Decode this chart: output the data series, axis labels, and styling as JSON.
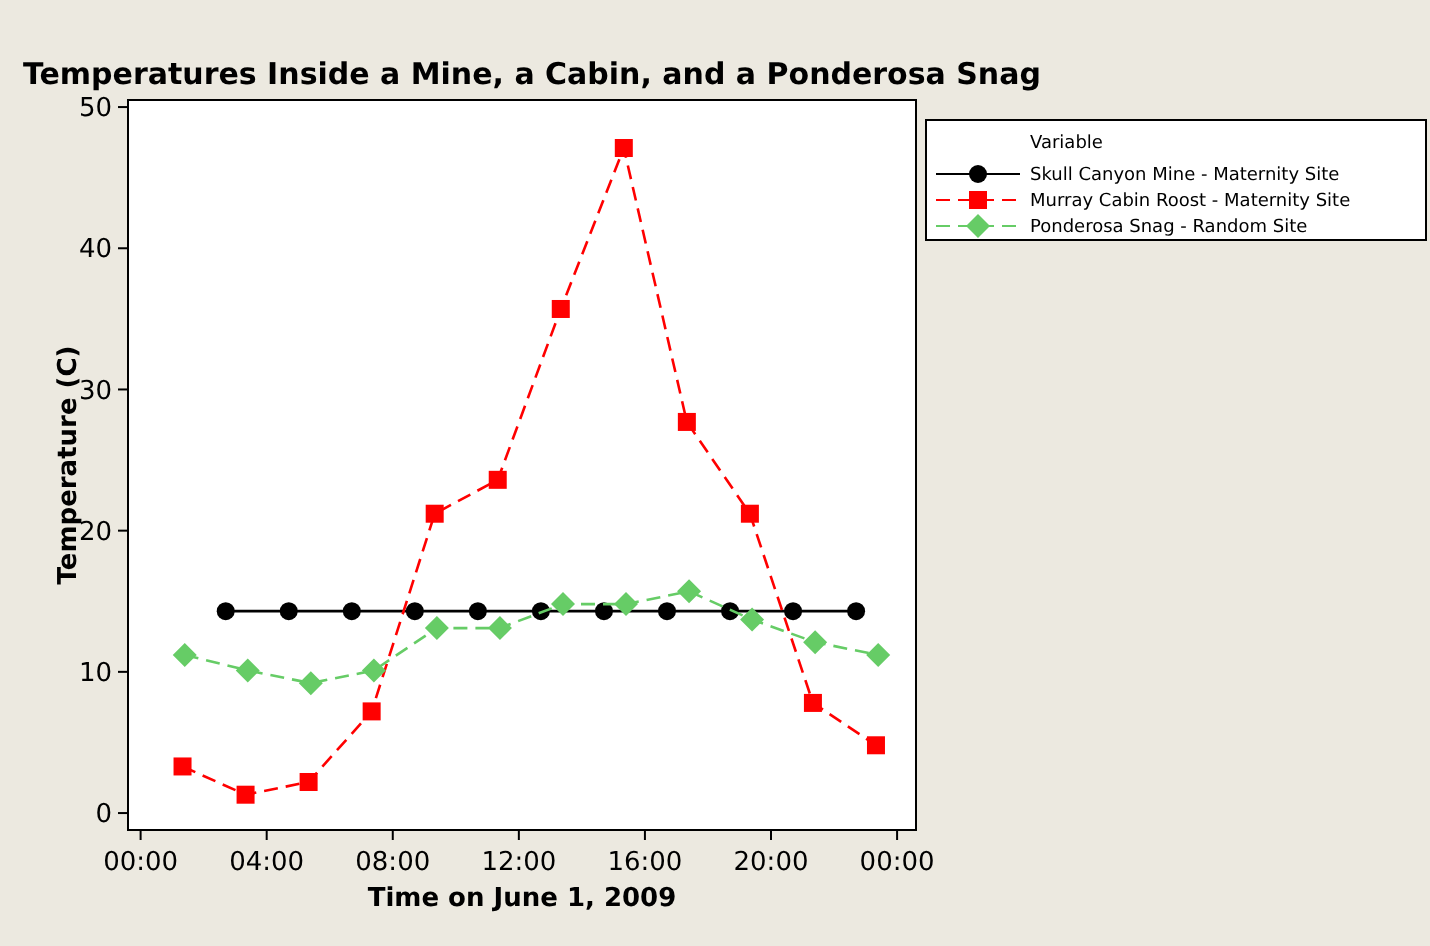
{
  "chart_data": {
    "type": "line",
    "title": "Temperatures Inside a Mine, a Cabin, and a Ponderosa Snag",
    "xlabel": "Time on June 1, 2009",
    "ylabel": "Temperature (C)",
    "legend_title": "Variable",
    "legend": "right",
    "xlim": [
      -0.4,
      24.6
    ],
    "ylim": [
      -1.2,
      50.5
    ],
    "xticks": [
      {
        "value": 0,
        "label": "00:00"
      },
      {
        "value": 4,
        "label": "04:00"
      },
      {
        "value": 8,
        "label": "08:00"
      },
      {
        "value": 12,
        "label": "12:00"
      },
      {
        "value": 16,
        "label": "16:00"
      },
      {
        "value": 20,
        "label": "20:00"
      },
      {
        "value": 24,
        "label": "00:00"
      }
    ],
    "yticks": [
      0,
      10,
      20,
      30,
      40,
      50
    ],
    "series": [
      {
        "name": "Skull Canyon Mine - Maternity Site",
        "color": "#000000",
        "marker": "circle",
        "line_style": "solid",
        "x": [
          2.7,
          4.7,
          6.7,
          8.7,
          10.7,
          12.7,
          14.7,
          16.7,
          18.7,
          20.7,
          22.7
        ],
        "values": [
          14.3,
          14.3,
          14.3,
          14.3,
          14.3,
          14.3,
          14.3,
          14.3,
          14.3,
          14.3,
          14.3
        ]
      },
      {
        "name": "Murray Cabin Roost - Maternity Site",
        "color": "#ff0000",
        "marker": "square",
        "line_style": "dashed",
        "x": [
          1.33,
          3.33,
          5.33,
          7.33,
          9.33,
          11.33,
          13.33,
          15.33,
          17.33,
          19.33,
          21.33,
          23.33
        ],
        "values": [
          3.3,
          1.3,
          2.2,
          7.2,
          21.2,
          23.6,
          35.7,
          47.1,
          27.7,
          21.2,
          7.8,
          4.8
        ]
      },
      {
        "name": "Ponderosa Snag - Random Site",
        "color": "#66cc66",
        "marker": "diamond",
        "line_style": "dashed",
        "x": [
          1.4,
          3.4,
          5.4,
          7.4,
          9.4,
          11.4,
          13.4,
          15.4,
          17.4,
          19.4,
          21.4,
          23.4
        ],
        "values": [
          11.2,
          10.1,
          9.2,
          10.1,
          13.1,
          13.1,
          14.8,
          14.8,
          15.7,
          13.7,
          12.1,
          11.2
        ]
      }
    ]
  }
}
